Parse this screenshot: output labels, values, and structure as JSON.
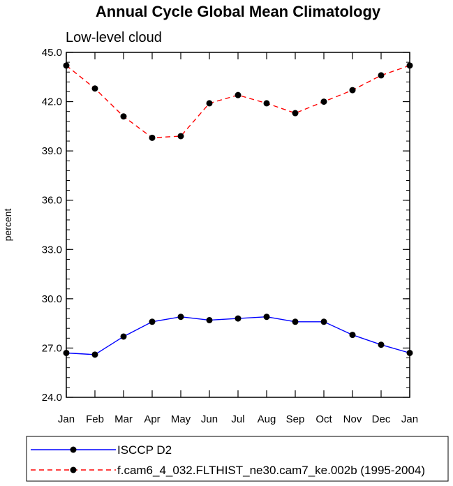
{
  "chart_data": {
    "type": "line",
    "title": "Annual Cycle Global Mean Climatology",
    "subtitle": "Low-level cloud",
    "xlabel": "",
    "ylabel": "percent",
    "categories": [
      "Jan",
      "Feb",
      "Mar",
      "Apr",
      "May",
      "Jun",
      "Jul",
      "Aug",
      "Sep",
      "Oct",
      "Nov",
      "Dec",
      "Jan"
    ],
    "ylim": [
      24.0,
      45.0
    ],
    "yticks": [
      "24.0",
      "27.0",
      "30.0",
      "33.0",
      "36.0",
      "39.0",
      "42.0",
      "45.0"
    ],
    "series": [
      {
        "name": "ISCCP D2",
        "color": "#0000ff",
        "line_style": "solid",
        "values": [
          26.7,
          26.6,
          27.7,
          28.6,
          28.9,
          28.7,
          28.8,
          28.9,
          28.6,
          28.6,
          27.8,
          27.2,
          26.7
        ]
      },
      {
        "name": "f.cam6_4_032.FLTHIST_ne30.cam7_ke.002b (1995-2004)",
        "color": "#ff0000",
        "line_style": "dashed",
        "values": [
          44.2,
          42.8,
          41.1,
          39.8,
          39.9,
          41.9,
          42.4,
          41.9,
          41.3,
          42.0,
          42.7,
          43.6,
          44.2
        ]
      }
    ],
    "marker_color": "#000000",
    "legend_position": "bottom"
  }
}
